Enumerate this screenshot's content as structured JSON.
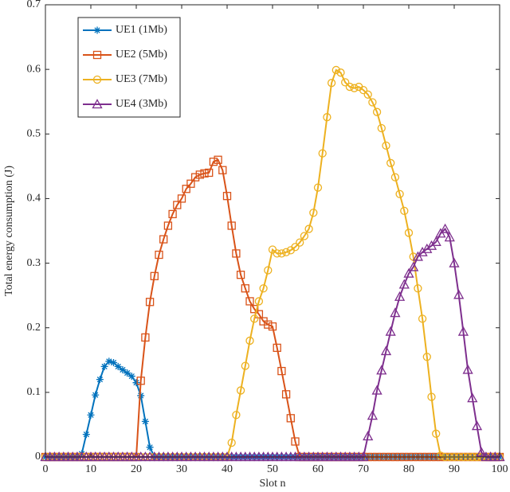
{
  "chart_data": {
    "type": "line",
    "xlabel": "Slot n",
    "ylabel": "Total energy consumption (J)",
    "xlim": [
      0,
      100
    ],
    "ylim": [
      0,
      0.7
    ],
    "xticks": [
      0,
      10,
      20,
      30,
      40,
      50,
      60,
      70,
      80,
      90,
      100
    ],
    "yticks": [
      0,
      0.1,
      0.2,
      0.3,
      0.4,
      0.5,
      0.6,
      0.7
    ],
    "legend": "upper left",
    "x": [
      0,
      1,
      2,
      3,
      4,
      5,
      6,
      7,
      8,
      9,
      10,
      11,
      12,
      13,
      14,
      15,
      16,
      17,
      18,
      19,
      20,
      21,
      22,
      23,
      24,
      25,
      26,
      27,
      28,
      29,
      30,
      31,
      32,
      33,
      34,
      35,
      36,
      37,
      38,
      39,
      40,
      41,
      42,
      43,
      44,
      45,
      46,
      47,
      48,
      49,
      50,
      51,
      52,
      53,
      54,
      55,
      56,
      57,
      58,
      59,
      60,
      61,
      62,
      63,
      64,
      65,
      66,
      67,
      68,
      69,
      70,
      71,
      72,
      73,
      74,
      75,
      76,
      77,
      78,
      79,
      80,
      81,
      82,
      83,
      84,
      85,
      86,
      87,
      88,
      89,
      90,
      91,
      92,
      93,
      94,
      95,
      96,
      97,
      98,
      99,
      100
    ],
    "series": [
      {
        "name": "UE1 (1Mb)",
        "color": "#0072BD",
        "marker": "asterisk",
        "values": [
          0,
          0,
          0,
          0,
          0,
          0,
          0,
          0,
          0.005,
          0.035,
          0.065,
          0.096,
          0.12,
          0.14,
          0.148,
          0.146,
          0.14,
          0.135,
          0.13,
          0.125,
          0.115,
          0.095,
          0.055,
          0.015,
          0,
          0,
          0,
          0,
          0,
          0,
          0,
          0,
          0,
          0,
          0,
          0,
          0,
          0,
          0,
          0,
          0,
          0,
          0,
          0,
          0,
          0,
          0,
          0,
          0,
          0,
          0,
          0,
          0,
          0,
          0,
          0,
          0,
          0,
          0,
          0,
          0,
          0,
          0,
          0,
          0,
          0,
          0,
          0,
          0,
          0,
          0,
          0,
          0,
          0,
          0,
          0,
          0,
          0,
          0,
          0,
          0,
          0,
          0,
          0,
          0,
          0,
          0,
          0,
          0,
          0,
          0,
          0,
          0,
          0,
          0,
          0,
          0,
          0,
          0,
          0,
          0
        ]
      },
      {
        "name": "UE2 (5Mb)",
        "color": "#D95319",
        "marker": "square",
        "values": [
          0,
          0,
          0,
          0,
          0,
          0,
          0,
          0,
          0,
          0,
          0,
          0,
          0,
          0,
          0,
          0,
          0,
          0,
          0,
          0,
          0,
          0.118,
          0.185,
          0.24,
          0.28,
          0.313,
          0.337,
          0.358,
          0.376,
          0.39,
          0.4,
          0.415,
          0.423,
          0.433,
          0.437,
          0.439,
          0.44,
          0.457,
          0.46,
          0.444,
          0.404,
          0.358,
          0.315,
          0.282,
          0.261,
          0.241,
          0.229,
          0.221,
          0.21,
          0.205,
          0.202,
          0.169,
          0.133,
          0.097,
          0.06,
          0.024,
          0,
          0,
          0,
          0,
          0,
          0,
          0,
          0,
          0,
          0,
          0,
          0,
          0,
          0,
          0,
          0,
          0,
          0,
          0,
          0,
          0,
          0,
          0,
          0,
          0,
          0,
          0,
          0,
          0,
          0,
          0,
          0,
          0,
          0,
          0,
          0,
          0,
          0,
          0,
          0,
          0,
          0,
          0,
          0,
          0
        ]
      },
      {
        "name": "UE3 (7Mb)",
        "color": "#EDB120",
        "marker": "circle",
        "values": [
          0,
          0,
          0,
          0,
          0,
          0,
          0,
          0,
          0,
          0,
          0,
          0,
          0,
          0,
          0,
          0,
          0,
          0,
          0,
          0,
          0,
          0,
          0,
          0,
          0,
          0,
          0,
          0,
          0,
          0,
          0,
          0,
          0,
          0,
          0,
          0,
          0,
          0,
          0,
          0,
          0,
          0.022,
          0.065,
          0.103,
          0.141,
          0.18,
          0.214,
          0.241,
          0.261,
          0.289,
          0.321,
          0.315,
          0.315,
          0.317,
          0.32,
          0.325,
          0.332,
          0.342,
          0.353,
          0.378,
          0.417,
          0.47,
          0.526,
          0.579,
          0.599,
          0.595,
          0.58,
          0.573,
          0.571,
          0.573,
          0.568,
          0.561,
          0.549,
          0.534,
          0.509,
          0.482,
          0.455,
          0.433,
          0.407,
          0.381,
          0.347,
          0.31,
          0.261,
          0.214,
          0.155,
          0.093,
          0.036,
          0.002,
          0,
          0,
          0,
          0,
          0,
          0,
          0,
          0,
          0,
          0,
          0,
          0,
          0
        ]
      },
      {
        "name": "UE4 (3Mb)",
        "color": "#7E2F8E",
        "marker": "triangle",
        "values": [
          0,
          0,
          0,
          0,
          0,
          0,
          0,
          0,
          0,
          0,
          0,
          0,
          0,
          0,
          0,
          0,
          0,
          0,
          0,
          0,
          0,
          0,
          0,
          0,
          0,
          0,
          0,
          0,
          0,
          0,
          0,
          0,
          0,
          0,
          0,
          0,
          0,
          0,
          0,
          0,
          0,
          0,
          0,
          0,
          0,
          0,
          0,
          0,
          0,
          0,
          0,
          0,
          0,
          0,
          0,
          0,
          0,
          0,
          0,
          0,
          0,
          0,
          0,
          0,
          0,
          0,
          0,
          0,
          0,
          0,
          0,
          0.032,
          0.064,
          0.103,
          0.134,
          0.164,
          0.194,
          0.223,
          0.248,
          0.267,
          0.284,
          0.294,
          0.31,
          0.317,
          0.322,
          0.327,
          0.333,
          0.346,
          0.353,
          0.34,
          0.3,
          0.251,
          0.194,
          0.135,
          0.091,
          0.048,
          0.007,
          0,
          0,
          0,
          0
        ]
      }
    ]
  }
}
